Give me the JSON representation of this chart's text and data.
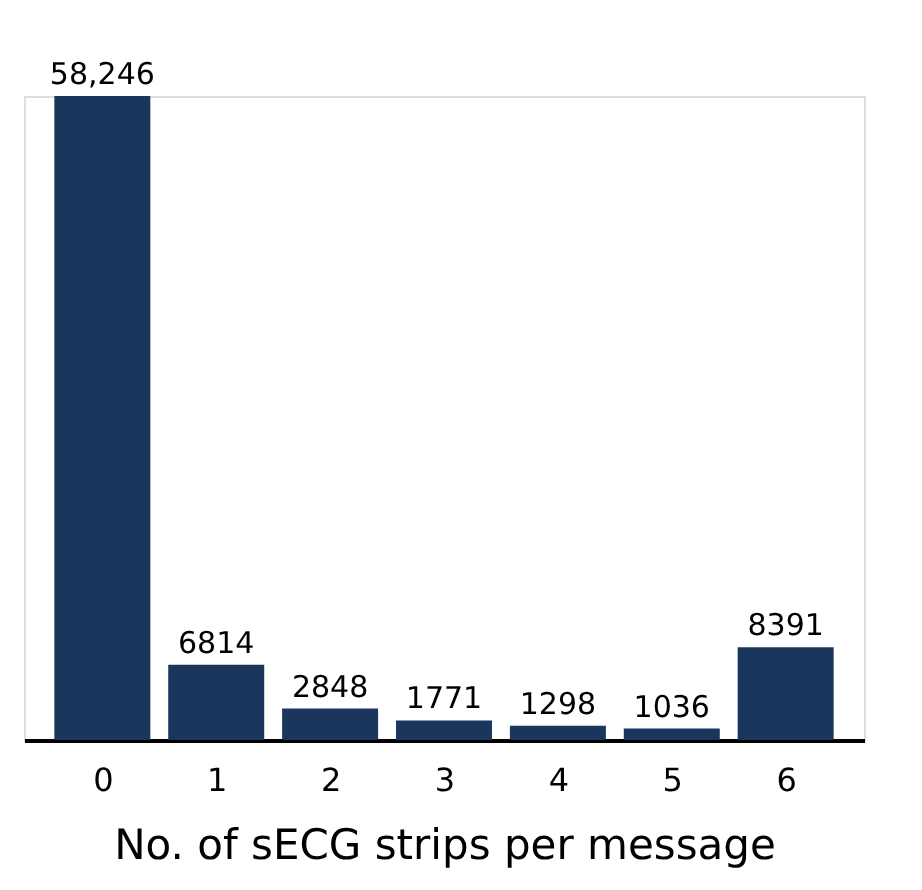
{
  "chart_data": {
    "type": "bar",
    "xlabel": "No. of sECG strips per message",
    "categories": [
      "0",
      "1",
      "2",
      "3",
      "4",
      "5",
      "6"
    ],
    "values": [
      58246,
      6814,
      2848,
      1771,
      1298,
      1036,
      8391
    ],
    "value_labels": [
      "58,246",
      "6814",
      "2848",
      "1771",
      "1298",
      "1036",
      "8391"
    ],
    "color": "#1b365d"
  }
}
